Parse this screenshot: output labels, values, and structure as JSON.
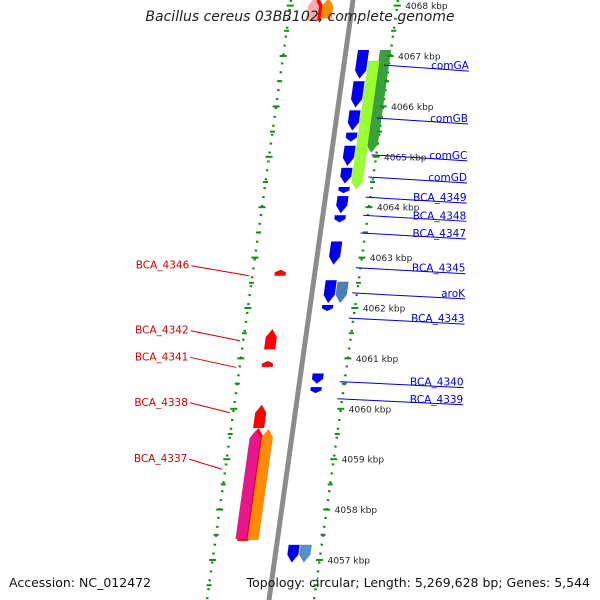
{
  "title": "Bacillus cereus 03BB102, complete genome",
  "footer": {
    "accession": "Accession: NC_012472",
    "summary": "Topology: circular; Length: 5,269,628 bp; Genes: 5,544"
  },
  "colors": {
    "backbone": "#8c8c8c",
    "ruler": "#1a8a1a",
    "forward_label": "#0000cc",
    "reverse_label": "#cc0000"
  },
  "chart_data": {
    "type": "genome-map",
    "axis_kbp_range": [
      4057,
      4068
    ],
    "ticks": [
      {
        "kbp": 4068,
        "label": "4068 kbp"
      },
      {
        "kbp": 4067,
        "label": "4067 kbp"
      },
      {
        "kbp": 4066,
        "label": "4066 kbp"
      },
      {
        "kbp": 4065,
        "label": "4065 kbp"
      },
      {
        "kbp": 4064,
        "label": "4064 kbp"
      },
      {
        "kbp": 4063,
        "label": "4063 kbp"
      },
      {
        "kbp": 4062,
        "label": "4062 kbp"
      },
      {
        "kbp": 4061,
        "label": "4061 kbp"
      },
      {
        "kbp": 4060,
        "label": "4060 kbp"
      },
      {
        "kbp": 4059,
        "label": "4059 kbp"
      },
      {
        "kbp": 4058,
        "label": "4058 kbp"
      },
      {
        "kbp": 4057,
        "label": "4057 kbp"
      }
    ],
    "features": [
      {
        "start": 4066.55,
        "end": 4067.12,
        "strand": "+",
        "track": 1,
        "color": "#0000ee"
      },
      {
        "start": 4065.98,
        "end": 4066.5,
        "strand": "+",
        "track": 1,
        "color": "#0000ee"
      },
      {
        "start": 4065.52,
        "end": 4065.92,
        "strand": "+",
        "track": 1,
        "color": "#0000ee"
      },
      {
        "start": 4065.3,
        "end": 4065.48,
        "strand": "+",
        "track": 1,
        "color": "#0000ee"
      },
      {
        "start": 4064.82,
        "end": 4065.22,
        "strand": "+",
        "track": 1,
        "color": "#0000ee"
      },
      {
        "start": 4064.47,
        "end": 4064.78,
        "strand": "+",
        "track": 1,
        "color": "#0000ee"
      },
      {
        "start": 4064.28,
        "end": 4064.4,
        "strand": "+",
        "track": 1,
        "color": "#0000ee"
      },
      {
        "start": 4063.88,
        "end": 4064.22,
        "strand": "+",
        "track": 1,
        "color": "#0000ee"
      },
      {
        "start": 4063.7,
        "end": 4063.84,
        "strand": "+",
        "track": 1,
        "color": "#0000ee"
      },
      {
        "start": 4062.86,
        "end": 4063.32,
        "strand": "+",
        "track": 1,
        "color": "#0000ee"
      },
      {
        "start": 4062.1,
        "end": 4062.55,
        "strand": "+",
        "track": 1,
        "color": "#0000ee"
      },
      {
        "start": 4061.94,
        "end": 4062.06,
        "strand": "+",
        "track": 1,
        "color": "#0000ee"
      },
      {
        "start": 4062.1,
        "end": 4062.52,
        "strand": "+",
        "track": 2,
        "color": "#4a7fb5"
      },
      {
        "start": 4060.5,
        "end": 4060.7,
        "strand": "+",
        "track": 1,
        "color": "#0000ee"
      },
      {
        "start": 4060.33,
        "end": 4060.43,
        "strand": "+",
        "track": 1,
        "color": "#0000ee"
      },
      {
        "start": 4056.95,
        "end": 4057.3,
        "strand": "+",
        "track": 1,
        "color": "#0000ee"
      },
      {
        "start": 4056.95,
        "end": 4057.3,
        "strand": "+",
        "track": 2,
        "color": "#5a8fc5"
      },
      {
        "start": 4065.08,
        "end": 4067.12,
        "strand": "+",
        "track": 3,
        "color": "#3ca03c"
      },
      {
        "start": 4064.35,
        "end": 4066.9,
        "strand": "+",
        "track": 2,
        "color": "#99ff33"
      },
      {
        "start": 4067.7,
        "end": 4068.15,
        "strand": "-",
        "track": 1,
        "color": "#ff0000"
      },
      {
        "start": 4067.7,
        "end": 4068.15,
        "strand": "-",
        "track": 0,
        "color": "#ffaaaa"
      },
      {
        "start": 4067.75,
        "end": 4068.15,
        "strand": "-",
        "track": 2,
        "color": "#ff8c00"
      },
      {
        "start": 4062.66,
        "end": 4062.76,
        "strand": "-",
        "track": 1,
        "color": "#ff0000"
      },
      {
        "start": 4061.18,
        "end": 4061.58,
        "strand": "-",
        "track": 1,
        "color": "#ff0000"
      },
      {
        "start": 4060.85,
        "end": 4060.95,
        "strand": "-",
        "track": 1,
        "color": "#ff0000"
      },
      {
        "start": 4059.62,
        "end": 4060.08,
        "strand": "-",
        "track": 1,
        "color": "#ff0000"
      },
      {
        "start": 4057.38,
        "end": 4059.62,
        "strand": "-",
        "track": 1,
        "color": "#ff0000"
      },
      {
        "start": 4057.4,
        "end": 4059.6,
        "strand": "-",
        "track": 2,
        "color": "#ff8c00"
      },
      {
        "start": 4057.42,
        "end": 4059.58,
        "strand": "-",
        "track": 3,
        "color": "#e8168a"
      }
    ],
    "forward_labels": [
      {
        "name": "comGA",
        "kbp": 4066.7
      },
      {
        "name": "comGB",
        "kbp": 4065.65
      },
      {
        "name": "comGC",
        "kbp": 4064.92
      },
      {
        "name": "comGD",
        "kbp": 4064.48
      },
      {
        "name": "BCA_4349",
        "kbp": 4064.08
      },
      {
        "name": "BCA_4348",
        "kbp": 4063.72
      },
      {
        "name": "BCA_4347",
        "kbp": 4063.37
      },
      {
        "name": "BCA_4345",
        "kbp": 4062.68
      },
      {
        "name": "aroK",
        "kbp": 4062.18
      },
      {
        "name": "BCA_4343",
        "kbp": 4061.68
      },
      {
        "name": "BCA_4340",
        "kbp": 4060.42
      },
      {
        "name": "BCA_4339",
        "kbp": 4060.08
      }
    ],
    "reverse_labels": [
      {
        "name": "BCA_4346",
        "kbp": 4062.74
      },
      {
        "name": "BCA_4342",
        "kbp": 4061.45
      },
      {
        "name": "BCA_4341",
        "kbp": 4060.92
      },
      {
        "name": "BCA_4338",
        "kbp": 4060.02
      },
      {
        "name": "BCA_4337",
        "kbp": 4058.9
      }
    ]
  }
}
